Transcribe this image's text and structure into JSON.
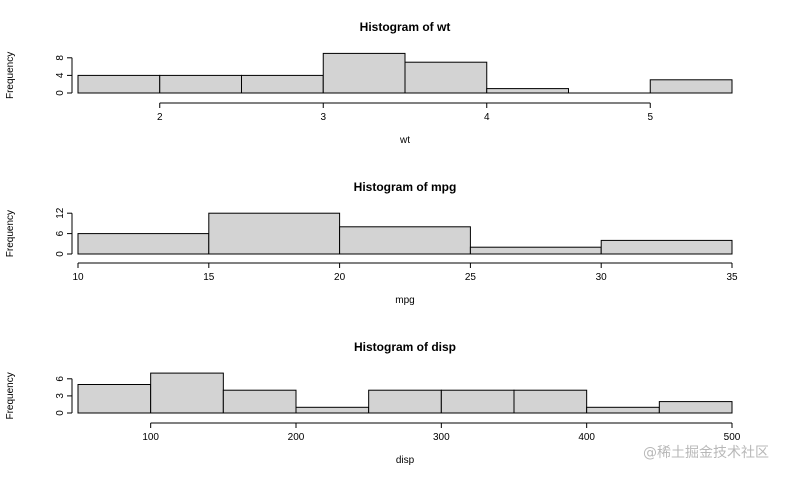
{
  "chart_data": [
    {
      "type": "bar",
      "title": "Histogram of wt",
      "xlabel": "wt",
      "ylabel": "Frequency",
      "breaks": [
        1.5,
        2,
        2.5,
        3,
        3.5,
        4,
        4.5,
        5,
        5.5
      ],
      "values": [
        4,
        4,
        4,
        9,
        7,
        1,
        0,
        3
      ],
      "xticks": [
        2,
        3,
        4,
        5
      ],
      "yticks": [
        0,
        4,
        8
      ],
      "xlim": [
        1.5,
        5.5
      ],
      "ylim": [
        0,
        9
      ],
      "bar_color": "#d3d3d3",
      "grid": false
    },
    {
      "type": "bar",
      "title": "Histogram of mpg",
      "xlabel": "mpg",
      "ylabel": "Frequency",
      "breaks": [
        10,
        15,
        20,
        25,
        30,
        35
      ],
      "values": [
        6,
        12,
        8,
        2,
        4
      ],
      "xticks": [
        10,
        15,
        20,
        25,
        30,
        35
      ],
      "yticks": [
        0,
        6,
        12
      ],
      "xlim": [
        10,
        35
      ],
      "ylim": [
        0,
        12
      ],
      "bar_color": "#d3d3d3",
      "grid": false
    },
    {
      "type": "bar",
      "title": "Histogram of disp",
      "xlabel": "disp",
      "ylabel": "Frequency",
      "breaks": [
        50,
        100,
        150,
        200,
        250,
        300,
        350,
        400,
        450,
        500
      ],
      "values": [
        5,
        7,
        4,
        1,
        4,
        4,
        4,
        1,
        2
      ],
      "xticks": [
        100,
        200,
        300,
        400,
        500
      ],
      "yticks": [
        0,
        3,
        6
      ],
      "xlim": [
        50,
        500
      ],
      "ylim": [
        0,
        7
      ],
      "bar_color": "#d3d3d3",
      "grid": false
    }
  ],
  "watermark": "@稀土掘金技术社区"
}
